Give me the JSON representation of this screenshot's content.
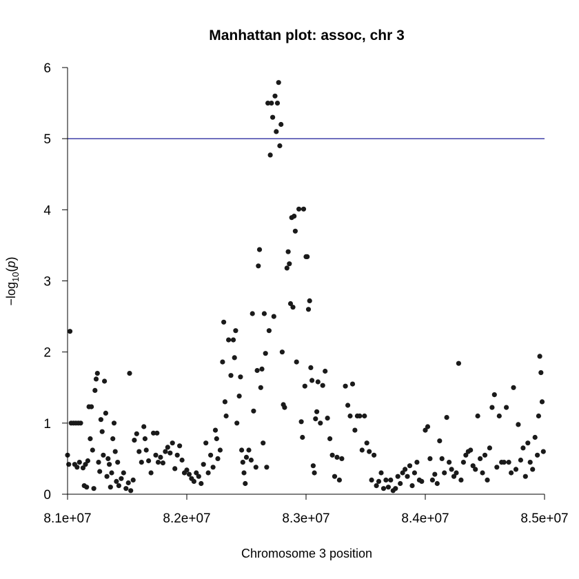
{
  "chart_data": {
    "type": "scatter",
    "title": "Manhattan plot: assoc, chr 3",
    "xlabel": "Chromosome 3 position",
    "ylabel": "−log10(p)",
    "ylabel_parts": {
      "prefix": "−log",
      "sub": "10",
      "open": "(",
      "var": "p",
      "close": ")"
    },
    "xlim": [
      81000000,
      85000000
    ],
    "ylim": [
      0,
      6
    ],
    "x_ticks": [
      81000000,
      82000000,
      83000000,
      84000000,
      85000000
    ],
    "x_tick_labels": [
      "8.1e+07",
      "8.2e+07",
      "8.3e+07",
      "8.4e+07",
      "8.5e+07"
    ],
    "y_ticks": [
      0,
      1,
      2,
      3,
      4,
      5,
      6
    ],
    "y_tick_labels": [
      "0",
      "1",
      "2",
      "3",
      "4",
      "5",
      "6"
    ],
    "threshold": 5,
    "threshold_color": "#00008b",
    "point_color": "#1a1a1a",
    "grid": false,
    "series": [
      {
        "points": [
          [
            81000000,
            0.55
          ],
          [
            81010000,
            0.42
          ],
          [
            81020000,
            2.29
          ],
          [
            81030000,
            1.0
          ],
          [
            81050000,
            1.0
          ],
          [
            81070000,
            1.0
          ],
          [
            81090000,
            1.0
          ],
          [
            81110000,
            1.0
          ],
          [
            81060000,
            0.42
          ],
          [
            81080000,
            0.38
          ],
          [
            81100000,
            0.45
          ],
          [
            81130000,
            0.37
          ],
          [
            81150000,
            0.42
          ],
          [
            81170000,
            0.47
          ],
          [
            81180000,
            1.23
          ],
          [
            81200000,
            1.23
          ],
          [
            81140000,
            0.12
          ],
          [
            81160000,
            0.1
          ],
          [
            81190000,
            0.78
          ],
          [
            81210000,
            0.62
          ],
          [
            81230000,
            1.46
          ],
          [
            81240000,
            1.62
          ],
          [
            81250000,
            1.7
          ],
          [
            81220000,
            0.08
          ],
          [
            81260000,
            0.45
          ],
          [
            81270000,
            0.32
          ],
          [
            81280000,
            1.05
          ],
          [
            81290000,
            0.88
          ],
          [
            81300000,
            0.55
          ],
          [
            81310000,
            1.59
          ],
          [
            81320000,
            1.14
          ],
          [
            81330000,
            0.25
          ],
          [
            81340000,
            0.5
          ],
          [
            81350000,
            0.42
          ],
          [
            81360000,
            0.1
          ],
          [
            81370000,
            0.3
          ],
          [
            81380000,
            0.78
          ],
          [
            81390000,
            1.0
          ],
          [
            81400000,
            0.6
          ],
          [
            81410000,
            0.18
          ],
          [
            81420000,
            0.45
          ],
          [
            81430000,
            0.12
          ],
          [
            81450000,
            0.22
          ],
          [
            81470000,
            0.3
          ],
          [
            81490000,
            0.08
          ],
          [
            81510000,
            0.16
          ],
          [
            81530000,
            0.05
          ],
          [
            81550000,
            0.2
          ],
          [
            81520000,
            1.7
          ],
          [
            81560000,
            0.76
          ],
          [
            81580000,
            0.85
          ],
          [
            81600000,
            0.6
          ],
          [
            81620000,
            0.45
          ],
          [
            81640000,
            0.95
          ],
          [
            81650000,
            0.78
          ],
          [
            81660000,
            0.62
          ],
          [
            81680000,
            0.47
          ],
          [
            81700000,
            0.3
          ],
          [
            81720000,
            0.86
          ],
          [
            81740000,
            0.55
          ],
          [
            81750000,
            0.86
          ],
          [
            81760000,
            0.45
          ],
          [
            81780000,
            0.52
          ],
          [
            81800000,
            0.44
          ],
          [
            81820000,
            0.6
          ],
          [
            81840000,
            0.66
          ],
          [
            81860000,
            0.58
          ],
          [
            81880000,
            0.72
          ],
          [
            81900000,
            0.36
          ],
          [
            81920000,
            0.55
          ],
          [
            81940000,
            0.68
          ],
          [
            81960000,
            0.48
          ],
          [
            81980000,
            0.3
          ],
          [
            82000000,
            0.34
          ],
          [
            82020000,
            0.28
          ],
          [
            82040000,
            0.22
          ],
          [
            82060000,
            0.18
          ],
          [
            82080000,
            0.3
          ],
          [
            82100000,
            0.25
          ],
          [
            82120000,
            0.15
          ],
          [
            82140000,
            0.42
          ],
          [
            82160000,
            0.72
          ],
          [
            82180000,
            0.3
          ],
          [
            82200000,
            0.55
          ],
          [
            82220000,
            0.38
          ],
          [
            82240000,
            0.9
          ],
          [
            82250000,
            0.78
          ],
          [
            82260000,
            0.5
          ],
          [
            82280000,
            0.62
          ],
          [
            82300000,
            1.86
          ],
          [
            82310000,
            2.42
          ],
          [
            82320000,
            1.3
          ],
          [
            82330000,
            1.1
          ],
          [
            82350000,
            2.17
          ],
          [
            82370000,
            1.67
          ],
          [
            82390000,
            2.17
          ],
          [
            82400000,
            1.92
          ],
          [
            82410000,
            2.3
          ],
          [
            82420000,
            1.0
          ],
          [
            82440000,
            1.38
          ],
          [
            82450000,
            1.65
          ],
          [
            82460000,
            0.62
          ],
          [
            82470000,
            0.45
          ],
          [
            82480000,
            0.3
          ],
          [
            82490000,
            0.15
          ],
          [
            82500000,
            0.52
          ],
          [
            82520000,
            0.62
          ],
          [
            82540000,
            0.48
          ],
          [
            82550000,
            2.54
          ],
          [
            82560000,
            1.17
          ],
          [
            82580000,
            0.38
          ],
          [
            82590000,
            1.74
          ],
          [
            82600000,
            3.21
          ],
          [
            82610000,
            3.44
          ],
          [
            82620000,
            1.5
          ],
          [
            82630000,
            1.76
          ],
          [
            82640000,
            0.72
          ],
          [
            82650000,
            2.54
          ],
          [
            82660000,
            1.98
          ],
          [
            82670000,
            0.38
          ],
          [
            82680000,
            5.5
          ],
          [
            82690000,
            2.3
          ],
          [
            82700000,
            4.77
          ],
          [
            82710000,
            5.5
          ],
          [
            82720000,
            5.3
          ],
          [
            82730000,
            2.5
          ],
          [
            82740000,
            5.6
          ],
          [
            82750000,
            5.1
          ],
          [
            82760000,
            5.5
          ],
          [
            82770000,
            5.79
          ],
          [
            82780000,
            4.9
          ],
          [
            82790000,
            5.2
          ],
          [
            82800000,
            2.0
          ],
          [
            82810000,
            1.26
          ],
          [
            82820000,
            1.22
          ],
          [
            82840000,
            3.18
          ],
          [
            82850000,
            3.41
          ],
          [
            82860000,
            3.24
          ],
          [
            82870000,
            2.68
          ],
          [
            82880000,
            3.89
          ],
          [
            82890000,
            2.63
          ],
          [
            82900000,
            3.91
          ],
          [
            82910000,
            3.7
          ],
          [
            82920000,
            1.86
          ],
          [
            82940000,
            4.01
          ],
          [
            82960000,
            1.02
          ],
          [
            82970000,
            0.8
          ],
          [
            82980000,
            4.01
          ],
          [
            82990000,
            1.52
          ],
          [
            83000000,
            3.34
          ],
          [
            83010000,
            3.34
          ],
          [
            83020000,
            2.6
          ],
          [
            83030000,
            2.72
          ],
          [
            83040000,
            1.78
          ],
          [
            83050000,
            1.6
          ],
          [
            83060000,
            0.4
          ],
          [
            83070000,
            0.3
          ],
          [
            83080000,
            1.06
          ],
          [
            83090000,
            1.16
          ],
          [
            83100000,
            1.58
          ],
          [
            83120000,
            1.0
          ],
          [
            83140000,
            1.53
          ],
          [
            83160000,
            1.73
          ],
          [
            83180000,
            1.07
          ],
          [
            83200000,
            0.78
          ],
          [
            83220000,
            0.55
          ],
          [
            83240000,
            0.25
          ],
          [
            83260000,
            0.52
          ],
          [
            83280000,
            0.2
          ],
          [
            83300000,
            0.5
          ],
          [
            83330000,
            1.52
          ],
          [
            83350000,
            1.25
          ],
          [
            83370000,
            1.1
          ],
          [
            83390000,
            1.55
          ],
          [
            83410000,
            0.9
          ],
          [
            83430000,
            1.1
          ],
          [
            83450000,
            1.1
          ],
          [
            83470000,
            0.62
          ],
          [
            83490000,
            1.1
          ],
          [
            83510000,
            0.72
          ],
          [
            83530000,
            0.6
          ],
          [
            83550000,
            0.2
          ],
          [
            83570000,
            0.55
          ],
          [
            83590000,
            0.12
          ],
          [
            83610000,
            0.18
          ],
          [
            83630000,
            0.3
          ],
          [
            83650000,
            0.08
          ],
          [
            83670000,
            0.2
          ],
          [
            83690000,
            0.1
          ],
          [
            83710000,
            0.2
          ],
          [
            83730000,
            0.05
          ],
          [
            83750000,
            0.08
          ],
          [
            83770000,
            0.25
          ],
          [
            83790000,
            0.15
          ],
          [
            83810000,
            0.3
          ],
          [
            83830000,
            0.35
          ],
          [
            83850000,
            0.25
          ],
          [
            83870000,
            0.4
          ],
          [
            83890000,
            0.12
          ],
          [
            83910000,
            0.3
          ],
          [
            83930000,
            0.45
          ],
          [
            83950000,
            0.2
          ],
          [
            83970000,
            0.18
          ],
          [
            84000000,
            0.9
          ],
          [
            84020000,
            0.95
          ],
          [
            84040000,
            0.5
          ],
          [
            84060000,
            0.2
          ],
          [
            84080000,
            0.28
          ],
          [
            84100000,
            0.15
          ],
          [
            84120000,
            0.75
          ],
          [
            84140000,
            0.5
          ],
          [
            84160000,
            0.3
          ],
          [
            84180000,
            1.08
          ],
          [
            84200000,
            0.45
          ],
          [
            84220000,
            0.35
          ],
          [
            84240000,
            0.25
          ],
          [
            84260000,
            0.3
          ],
          [
            84280000,
            1.84
          ],
          [
            84300000,
            0.2
          ],
          [
            84320000,
            0.45
          ],
          [
            84340000,
            0.55
          ],
          [
            84360000,
            0.6
          ],
          [
            84380000,
            0.62
          ],
          [
            84400000,
            0.4
          ],
          [
            84420000,
            0.35
          ],
          [
            84440000,
            1.1
          ],
          [
            84460000,
            0.5
          ],
          [
            84480000,
            0.3
          ],
          [
            84500000,
            0.55
          ],
          [
            84520000,
            0.2
          ],
          [
            84540000,
            0.65
          ],
          [
            84560000,
            1.22
          ],
          [
            84580000,
            1.4
          ],
          [
            84600000,
            0.38
          ],
          [
            84620000,
            1.1
          ],
          [
            84640000,
            0.45
          ],
          [
            84660000,
            0.45
          ],
          [
            84680000,
            1.22
          ],
          [
            84700000,
            0.45
          ],
          [
            84720000,
            0.3
          ],
          [
            84740000,
            1.5
          ],
          [
            84760000,
            0.35
          ],
          [
            84780000,
            0.98
          ],
          [
            84800000,
            0.48
          ],
          [
            84820000,
            0.65
          ],
          [
            84840000,
            0.25
          ],
          [
            84860000,
            0.72
          ],
          [
            84880000,
            0.45
          ],
          [
            84900000,
            0.35
          ],
          [
            84920000,
            0.8
          ],
          [
            84940000,
            0.55
          ],
          [
            84950000,
            1.1
          ],
          [
            84960000,
            1.94
          ],
          [
            84970000,
            1.71
          ],
          [
            84980000,
            1.3
          ],
          [
            84990000,
            0.6
          ]
        ]
      }
    ]
  }
}
